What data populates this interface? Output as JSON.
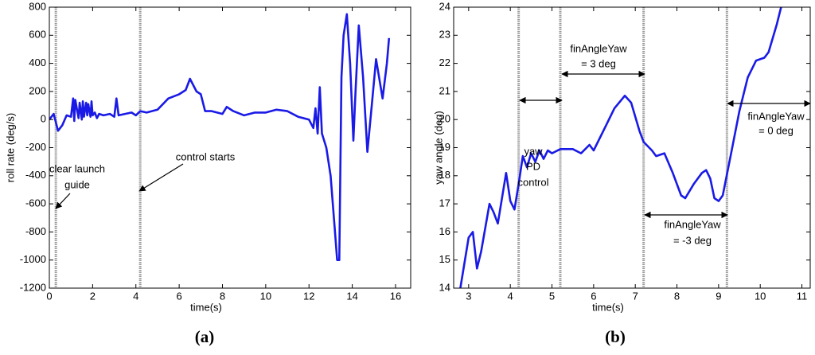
{
  "chart_data": [
    {
      "type": "line",
      "caption": "(a)",
      "xlabel": "time(s)",
      "ylabel": "roll rate (deg/s)",
      "xlim": [
        0,
        16.7
      ],
      "xticks": [
        0,
        2,
        4,
        6,
        8,
        10,
        12,
        14,
        16
      ],
      "ylim": [
        -1200,
        800
      ],
      "yticks": [
        -1200,
        -1000,
        -800,
        -600,
        -400,
        -200,
        0,
        200,
        400,
        600,
        800
      ],
      "vlines": [
        0.3,
        4.2
      ],
      "annotations": [
        {
          "lines": [
            "clear launch",
            "guide"
          ]
        },
        {
          "lines": [
            "control starts"
          ]
        }
      ],
      "series": [
        {
          "color": "#1a1ae6",
          "x": [
            0,
            0.2,
            0.3,
            0.4,
            0.6,
            0.8,
            1.0,
            1.1,
            1.15,
            1.2,
            1.35,
            1.4,
            1.5,
            1.55,
            1.6,
            1.7,
            1.75,
            1.8,
            1.9,
            1.95,
            2.0,
            2.1,
            2.2,
            2.3,
            2.5,
            2.8,
            3.0,
            3.1,
            3.2,
            3.5,
            3.8,
            4.0,
            4.2,
            4.5,
            5.0,
            5.5,
            6.0,
            6.3,
            6.5,
            6.8,
            7.0,
            7.2,
            7.5,
            8.0,
            8.2,
            8.5,
            9.0,
            9.5,
            10.0,
            10.5,
            11.0,
            11.5,
            12.0,
            12.2,
            12.3,
            12.4,
            12.5,
            12.6,
            12.8,
            13.0,
            13.2,
            13.3,
            13.4,
            13.5,
            13.6,
            13.75,
            13.9,
            14.05,
            14.15,
            14.3,
            14.5,
            14.7,
            14.9,
            15.1,
            15.4,
            15.6,
            15.7
          ],
          "values": [
            0,
            40,
            -20,
            -80,
            -40,
            30,
            20,
            150,
            -10,
            140,
            10,
            120,
            0,
            130,
            20,
            120,
            30,
            110,
            20,
            130,
            30,
            50,
            10,
            40,
            30,
            40,
            20,
            150,
            30,
            40,
            50,
            30,
            60,
            50,
            70,
            150,
            180,
            210,
            290,
            200,
            180,
            60,
            60,
            40,
            90,
            60,
            30,
            50,
            50,
            70,
            60,
            20,
            0,
            -60,
            80,
            -100,
            230,
            -100,
            -200,
            -400,
            -800,
            -1000,
            -1000,
            300,
            600,
            750,
            400,
            -150,
            200,
            670,
            300,
            -230,
            100,
            430,
            150,
            400,
            580
          ]
        }
      ]
    },
    {
      "type": "line",
      "caption": "(b)",
      "xlabel": "time(s)",
      "ylabel": "yaw angle (deg)",
      "xlim": [
        2.64,
        11.2
      ],
      "xticks": [
        3,
        4,
        5,
        6,
        7,
        8,
        9,
        10,
        11
      ],
      "ylim": [
        14,
        24
      ],
      "yticks": [
        14,
        15,
        16,
        17,
        18,
        19,
        20,
        21,
        22,
        23,
        24
      ],
      "vlines": [
        4.2,
        5.2,
        7.2,
        9.2
      ],
      "annotations": [
        {
          "lines": [
            "yaw",
            "PD",
            "control"
          ]
        },
        {
          "lines": [
            "finAngleYaw",
            "= 3 deg"
          ]
        },
        {
          "lines": [
            "finAngleYaw",
            "= -3 deg"
          ]
        },
        {
          "lines": [
            "finAngleYaw",
            "= 0 deg"
          ]
        }
      ],
      "series": [
        {
          "color": "#1a1ae6",
          "x": [
            2.8,
            3.0,
            3.1,
            3.2,
            3.3,
            3.5,
            3.6,
            3.7,
            3.9,
            4.0,
            4.1,
            4.2,
            4.3,
            4.4,
            4.5,
            4.6,
            4.7,
            4.8,
            4.9,
            5.0,
            5.2,
            5.5,
            5.7,
            5.9,
            6.0,
            6.3,
            6.5,
            6.75,
            6.9,
            7.1,
            7.2,
            7.4,
            7.5,
            7.7,
            7.9,
            8.1,
            8.2,
            8.4,
            8.6,
            8.7,
            8.8,
            8.9,
            9.0,
            9.1,
            9.3,
            9.5,
            9.7,
            9.9,
            10.1,
            10.2,
            10.4,
            10.5
          ],
          "values": [
            14,
            15.8,
            16,
            14.7,
            15.3,
            17,
            16.7,
            16.3,
            18.1,
            17.1,
            16.8,
            17.7,
            18.7,
            18.3,
            18.8,
            18.5,
            18.9,
            18.6,
            18.9,
            18.8,
            18.95,
            18.95,
            18.8,
            19.1,
            18.9,
            19.8,
            20.4,
            20.85,
            20.6,
            19.6,
            19.2,
            18.9,
            18.7,
            18.8,
            18.1,
            17.3,
            17.2,
            17.7,
            18.1,
            18.2,
            17.9,
            17.2,
            17.1,
            17.3,
            18.8,
            20.3,
            21.5,
            22.1,
            22.2,
            22.4,
            23.4,
            24
          ]
        }
      ]
    }
  ]
}
